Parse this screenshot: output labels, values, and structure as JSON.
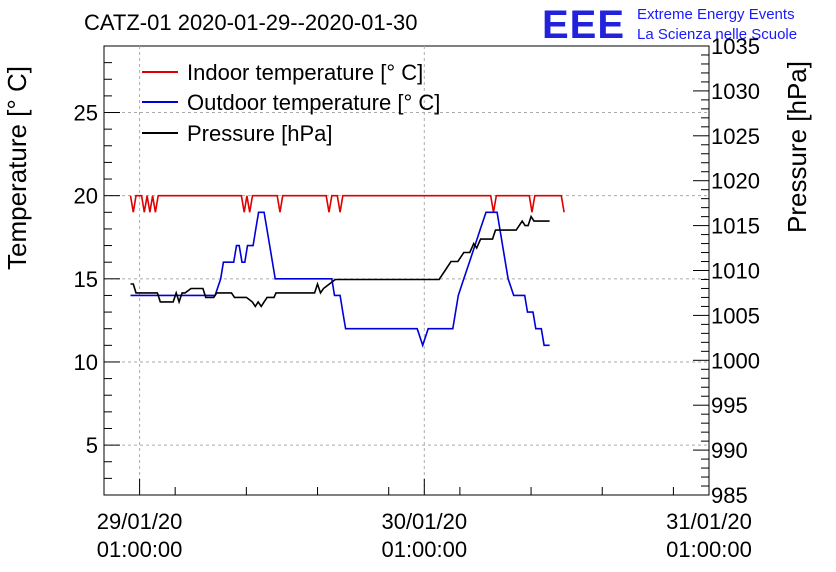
{
  "title": "CATZ-01 2020-01-29--2020-01-30",
  "logo": {
    "mark": "EEE",
    "line1": "Extreme Energy Events",
    "line2": "La Scienza nelle Scuole",
    "color": "#2222dd"
  },
  "chart_data": {
    "type": "line",
    "title": "CATZ-01 2020-01-29--2020-01-30",
    "ylabel": "Temperature [° C]",
    "y2label": "Pressure [hPa]",
    "xlim": [
      "2020-01-28T22:00:00",
      "2020-01-31T01:00:00"
    ],
    "ylim": [
      2,
      29
    ],
    "y2lim": [
      985,
      1035
    ],
    "x_ticks": [
      {
        "x": "2020-01-29T01:00:00",
        "line1": "29/01/20",
        "line2": "01:00:00"
      },
      {
        "x": "2020-01-30T01:00:00",
        "line1": "30/01/20",
        "line2": "01:00:00"
      },
      {
        "x": "2020-01-31T01:00:00",
        "line1": "31/01/20",
        "line2": "01:00:00"
      }
    ],
    "y_ticks": [
      "5",
      "10",
      "15",
      "20",
      "25"
    ],
    "y2_ticks": [
      "985",
      "990",
      "995",
      "1000",
      "1005",
      "1010",
      "1015",
      "1020",
      "1025",
      "1030",
      "1035"
    ],
    "grid": true,
    "legend_position": "top-left",
    "series": [
      {
        "name": "Indoor temperature [° C]",
        "axis": "left",
        "color": "#e00000",
        "points": [
          [
            "2020-01-29T00:14",
            20
          ],
          [
            "2020-01-29T00:28",
            19
          ],
          [
            "2020-01-29T00:42",
            20
          ],
          [
            "2020-01-29T01:10",
            20
          ],
          [
            "2020-01-29T01:24",
            19
          ],
          [
            "2020-01-29T01:38",
            20
          ],
          [
            "2020-01-29T01:52",
            19
          ],
          [
            "2020-01-29T02:06",
            20
          ],
          [
            "2020-01-29T02:20",
            19
          ],
          [
            "2020-01-29T02:34",
            20
          ],
          [
            "2020-01-29T09:35",
            20
          ],
          [
            "2020-01-29T09:49",
            19
          ],
          [
            "2020-01-29T10:03",
            20
          ],
          [
            "2020-01-29T10:17",
            19
          ],
          [
            "2020-01-29T10:31",
            20
          ],
          [
            "2020-01-29T12:36",
            20
          ],
          [
            "2020-01-29T12:50",
            19
          ],
          [
            "2020-01-29T13:04",
            20
          ],
          [
            "2020-01-29T16:44",
            20
          ],
          [
            "2020-01-29T16:58",
            19
          ],
          [
            "2020-01-29T17:12",
            20
          ],
          [
            "2020-01-29T17:40",
            20
          ],
          [
            "2020-01-29T17:54",
            19
          ],
          [
            "2020-01-29T18:08",
            20
          ],
          [
            "2020-01-30T06:36",
            20
          ],
          [
            "2020-01-30T06:50",
            19
          ],
          [
            "2020-01-30T07:04",
            20
          ],
          [
            "2020-01-30T09:51",
            20
          ],
          [
            "2020-01-30T10:05",
            19
          ],
          [
            "2020-01-30T10:19",
            20
          ],
          [
            "2020-01-30T12:33",
            20
          ],
          [
            "2020-01-30T12:47",
            19
          ]
        ]
      },
      {
        "name": "Outdoor temperature [° C]",
        "axis": "left",
        "color": "#0000d8",
        "points": [
          [
            "2020-01-29T00:14",
            14
          ],
          [
            "2020-01-29T07:22",
            14
          ],
          [
            "2020-01-29T07:50",
            15
          ],
          [
            "2020-01-29T08:04",
            16
          ],
          [
            "2020-01-29T08:56",
            16
          ],
          [
            "2020-01-29T09:10",
            17
          ],
          [
            "2020-01-29T09:24",
            17
          ],
          [
            "2020-01-29T09:38",
            16
          ],
          [
            "2020-01-29T09:52",
            16
          ],
          [
            "2020-01-29T10:06",
            17
          ],
          [
            "2020-01-29T10:34",
            17
          ],
          [
            "2020-01-29T10:48",
            18
          ],
          [
            "2020-01-29T11:02",
            19
          ],
          [
            "2020-01-29T11:30",
            19
          ],
          [
            "2020-01-29T11:58",
            17
          ],
          [
            "2020-01-29T12:26",
            15
          ],
          [
            "2020-01-29T17:12",
            15
          ],
          [
            "2020-01-29T17:26",
            14
          ],
          [
            "2020-01-29T17:54",
            14
          ],
          [
            "2020-01-29T18:08",
            13
          ],
          [
            "2020-01-29T18:22",
            12
          ],
          [
            "2020-01-30T00:24",
            12
          ],
          [
            "2020-01-30T00:52",
            11
          ],
          [
            "2020-01-30T01:20",
            12
          ],
          [
            "2020-01-30T03:24",
            12
          ],
          [
            "2020-01-30T03:52",
            14
          ],
          [
            "2020-01-30T04:20",
            15
          ],
          [
            "2020-01-30T04:48",
            16
          ],
          [
            "2020-01-30T05:16",
            17
          ],
          [
            "2020-01-30T05:44",
            18
          ],
          [
            "2020-01-30T06:12",
            19
          ],
          [
            "2020-01-30T07:08",
            19
          ],
          [
            "2020-01-30T07:36",
            17
          ],
          [
            "2020-01-30T08:04",
            15
          ],
          [
            "2020-01-30T08:32",
            14
          ],
          [
            "2020-01-30T09:28",
            14
          ],
          [
            "2020-01-30T09:42",
            13
          ],
          [
            "2020-01-30T10:10",
            13
          ],
          [
            "2020-01-30T10:24",
            12
          ],
          [
            "2020-01-30T10:52",
            12
          ],
          [
            "2020-01-30T11:06",
            11
          ],
          [
            "2020-01-30T11:34",
            11
          ]
        ]
      },
      {
        "name": "Pressure [hPa]",
        "axis": "right",
        "color": "#000000",
        "points": [
          [
            "2020-01-29T00:14",
            1008.5
          ],
          [
            "2020-01-29T00:28",
            1008.5
          ],
          [
            "2020-01-29T00:42",
            1007.5
          ],
          [
            "2020-01-29T02:30",
            1007.5
          ],
          [
            "2020-01-29T02:45",
            1006.5
          ],
          [
            "2020-01-29T03:50",
            1006.5
          ],
          [
            "2020-01-29T04:05",
            1007.5
          ],
          [
            "2020-01-29T04:20",
            1006.5
          ],
          [
            "2020-01-29T04:35",
            1007.5
          ],
          [
            "2020-01-29T04:50",
            1007.5
          ],
          [
            "2020-01-29T05:20",
            1008
          ],
          [
            "2020-01-29T06:20",
            1008
          ],
          [
            "2020-01-29T06:35",
            1007
          ],
          [
            "2020-01-29T07:15",
            1007
          ],
          [
            "2020-01-29T07:30",
            1007.5
          ],
          [
            "2020-01-29T08:45",
            1007.5
          ],
          [
            "2020-01-29T09:00",
            1007
          ],
          [
            "2020-01-29T10:00",
            1007
          ],
          [
            "2020-01-29T10:30",
            1006.5
          ],
          [
            "2020-01-29T10:45",
            1006
          ],
          [
            "2020-01-29T11:00",
            1006.5
          ],
          [
            "2020-01-29T11:15",
            1006
          ],
          [
            "2020-01-29T11:30",
            1006.5
          ],
          [
            "2020-01-29T11:45",
            1007
          ],
          [
            "2020-01-29T12:20",
            1007
          ],
          [
            "2020-01-29T12:30",
            1007.5
          ],
          [
            "2020-01-29T15:45",
            1007.5
          ],
          [
            "2020-01-29T16:00",
            1008.5
          ],
          [
            "2020-01-29T16:15",
            1007.5
          ],
          [
            "2020-01-29T16:30",
            1008
          ],
          [
            "2020-01-29T17:00",
            1008.5
          ],
          [
            "2020-01-29T17:30",
            1009
          ],
          [
            "2020-01-30T02:15",
            1009
          ],
          [
            "2020-01-30T02:45",
            1010
          ],
          [
            "2020-01-30T03:15",
            1011
          ],
          [
            "2020-01-30T03:50",
            1011
          ],
          [
            "2020-01-30T04:20",
            1012
          ],
          [
            "2020-01-30T04:50",
            1012
          ],
          [
            "2020-01-30T05:10",
            1013
          ],
          [
            "2020-01-30T05:25",
            1012.5
          ],
          [
            "2020-01-30T05:45",
            1013.5
          ],
          [
            "2020-01-30T06:45",
            1013.5
          ],
          [
            "2020-01-30T07:00",
            1014.5
          ],
          [
            "2020-01-30T08:45",
            1014.5
          ],
          [
            "2020-01-30T09:00",
            1015
          ],
          [
            "2020-01-30T09:15",
            1015.5
          ],
          [
            "2020-01-30T09:30",
            1015
          ],
          [
            "2020-01-30T09:45",
            1015
          ],
          [
            "2020-01-30T10:00",
            1016
          ],
          [
            "2020-01-30T10:15",
            1015.5
          ],
          [
            "2020-01-30T11:34",
            1015.5
          ]
        ]
      }
    ]
  }
}
